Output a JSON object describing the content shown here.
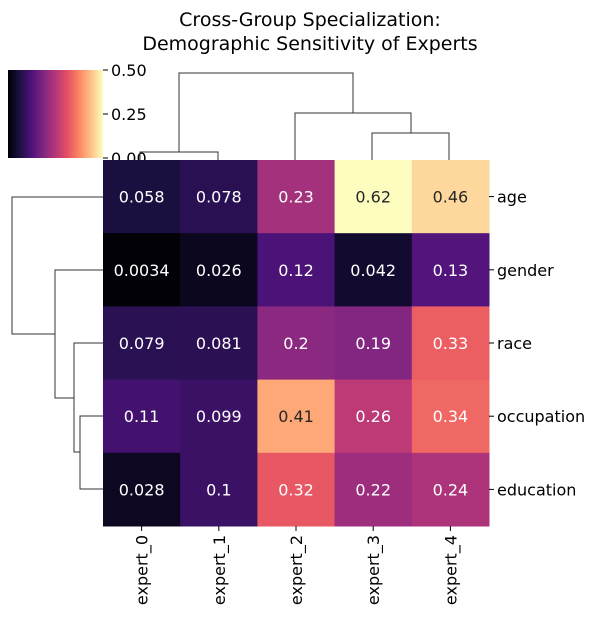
{
  "chart_data": {
    "type": "heatmap",
    "title": "Cross-Group Specialization:\nDemographic Sensitivity of Experts",
    "title_lines": [
      "Cross-Group Specialization:",
      "Demographic Sensitivity of Experts"
    ],
    "columns": [
      "expert_0",
      "expert_1",
      "expert_2",
      "expert_3",
      "expert_4"
    ],
    "rows": [
      "age",
      "gender",
      "race",
      "occupation",
      "education"
    ],
    "values": [
      [
        0.058,
        0.078,
        0.23,
        0.62,
        0.46
      ],
      [
        0.0034,
        0.026,
        0.12,
        0.042,
        0.13
      ],
      [
        0.079,
        0.081,
        0.2,
        0.19,
        0.33
      ],
      [
        0.11,
        0.099,
        0.41,
        0.26,
        0.34
      ],
      [
        0.028,
        0.1,
        0.32,
        0.22,
        0.24
      ]
    ],
    "labels": [
      [
        "0.058",
        "0.078",
        "0.23",
        "0.62",
        "0.46"
      ],
      [
        "0.0034",
        "0.026",
        "0.12",
        "0.042",
        "0.13"
      ],
      [
        "0.079",
        "0.081",
        "0.2",
        "0.19",
        "0.33"
      ],
      [
        "0.11",
        "0.099",
        "0.41",
        "0.26",
        "0.34"
      ],
      [
        "0.028",
        "0.1",
        "0.32",
        "0.22",
        "0.24"
      ]
    ],
    "colormap": "magma",
    "color_range": [
      0,
      0.5
    ],
    "colorbar_ticks": [
      "0.50",
      "0.25",
      "0.00"
    ],
    "colorbar_tick_values": [
      0.5,
      0.25,
      0.0
    ],
    "dendrograms": {
      "columns": "hierarchical clustering tree above columns",
      "rows": "hierarchical clustering tree left of rows"
    }
  }
}
